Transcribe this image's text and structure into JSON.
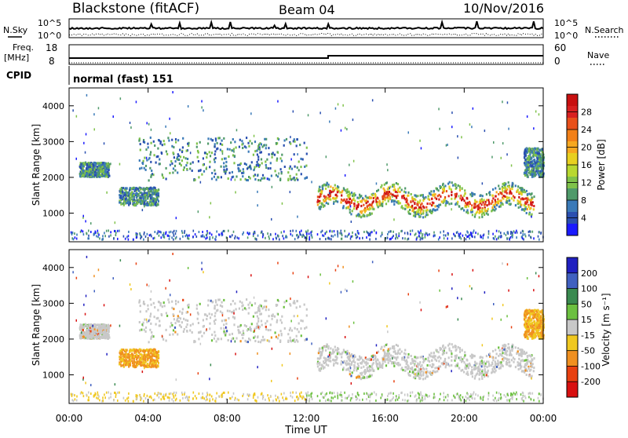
{
  "header": {
    "radar": "Blackstone (fitACF)",
    "beam": "Beam 04",
    "date": "10/Nov/2016"
  },
  "nsky_panel": {
    "left_label": "N.Sky",
    "right_label": "N.Search",
    "left_ticks": [
      "10^5",
      "10^0"
    ],
    "right_ticks": [
      "10^5",
      "10^0"
    ]
  },
  "freq_panel": {
    "left_label_line1": "Freq.",
    "left_label_line2": "[MHz]",
    "right_label": "Nave",
    "left_ticks": [
      "18",
      "8"
    ],
    "right_ticks": [
      "60",
      "0"
    ]
  },
  "cpid_panel": {
    "label": "CPID",
    "mode_text": "normal (fast) 151"
  },
  "x_axis": {
    "label": "Time UT",
    "tick_labels": [
      "00:00",
      "04:00",
      "08:00",
      "12:00",
      "16:00",
      "20:00",
      "00:00"
    ]
  },
  "chart_data": [
    {
      "type": "heatmap",
      "name": "power",
      "ylabel": "Slant Range [km]",
      "y_ticks": [
        "1000",
        "2000",
        "3000",
        "4000"
      ],
      "ylim": [
        200,
        4500
      ],
      "xlim_hours": [
        0,
        24
      ],
      "colorbar": {
        "label": "Power [dB]",
        "tick_labels": [
          "4",
          "8",
          "12",
          "16",
          "20",
          "24",
          "28"
        ],
        "colors": [
          "#1a1aff",
          "#2a4fb0",
          "#3a7ab8",
          "#4f9a6a",
          "#7fc24a",
          "#b8d830",
          "#e8d020",
          "#f7a820",
          "#f28018",
          "#e8501a",
          "#d82020",
          "#c81010"
        ]
      },
      "scatter_bands": [
        {
          "hours": [
            0.5,
            2.0
          ],
          "range_km": [
            2000,
            2400
          ]
        },
        {
          "hours": [
            2.5,
            4.5
          ],
          "range_km": [
            1200,
            1700
          ]
        },
        {
          "hours": [
            3.5,
            12.0
          ],
          "range_km": [
            1900,
            3100
          ]
        },
        {
          "hours": [
            12.5,
            23.5
          ],
          "range_km": [
            900,
            1900
          ]
        },
        {
          "hours": [
            23.0,
            24.0
          ],
          "range_km": [
            2000,
            2800
          ]
        }
      ]
    },
    {
      "type": "heatmap",
      "name": "velocity",
      "ylabel": "Slant Range [km]",
      "y_ticks": [
        "1000",
        "2000",
        "3000",
        "4000"
      ],
      "ylim": [
        200,
        4500
      ],
      "xlim_hours": [
        0,
        24
      ],
      "colorbar": {
        "label": "Velocity [m s⁻¹]",
        "tick_labels": [
          "200",
          "100",
          "50",
          "15",
          "-15",
          "-50",
          "-100",
          "-200"
        ],
        "colors": [
          "#2020c0",
          "#4060c0",
          "#3a8a50",
          "#6cc040",
          "#c8c8c8",
          "#f0c820",
          "#f09020",
          "#e84010",
          "#d81010"
        ]
      }
    }
  ]
}
